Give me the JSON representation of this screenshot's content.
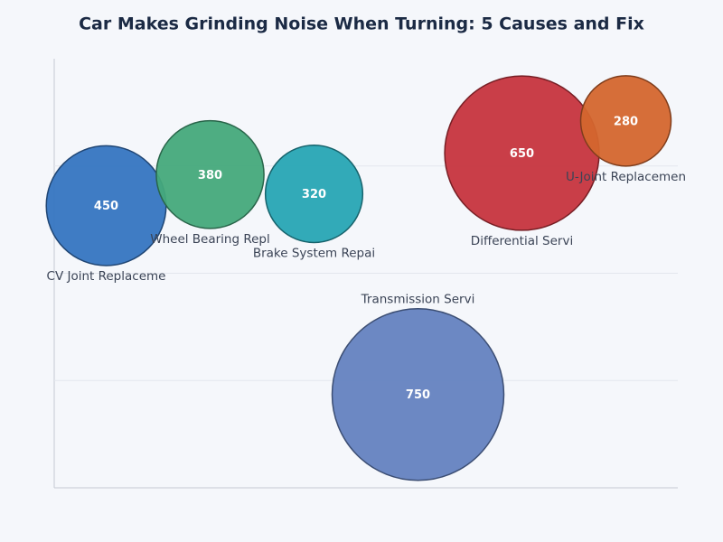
{
  "chart_data": {
    "type": "bubble",
    "title": "Car Makes Grinding Noise When Turning: 5 Causes and Fix",
    "categories": [
      "CV Joint Replaceme",
      "Wheel Bearing Repl",
      "Brake System Repai",
      "Transmission Servi",
      "Differential Servi",
      "U-Joint Replacemen"
    ],
    "x": [
      0,
      1,
      2,
      3,
      4,
      5
    ],
    "y": [
      2.63,
      2.92,
      2.74,
      0.87,
      3.12,
      3.42
    ],
    "values": [
      450,
      380,
      320,
      750,
      650,
      280
    ],
    "colors": [
      "#3575c1",
      "#45a97b",
      "#27a5b4",
      "#6482c0",
      "#c6343e",
      "#d4662e"
    ],
    "xlim": [
      -0.5,
      5.5
    ],
    "ylim": [
      0,
      4
    ],
    "yticks": [
      1,
      2,
      3
    ],
    "grid": true
  }
}
